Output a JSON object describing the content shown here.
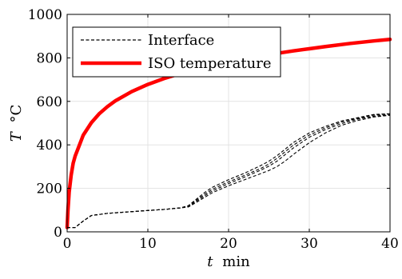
{
  "chart_data": {
    "type": "line",
    "title": "",
    "xlabel": {
      "var": "t",
      "unit": "min"
    },
    "ylabel": {
      "var": "T",
      "unit": "°C"
    },
    "xlim": [
      0,
      40
    ],
    "ylim": [
      0,
      1000
    ],
    "xticks": [
      0,
      10,
      20,
      30,
      40
    ],
    "yticks": [
      0,
      200,
      400,
      600,
      800,
      1000
    ],
    "grid": true,
    "legend_position": "top-left",
    "legend": [
      {
        "label": "Interface",
        "style": "dashed",
        "color": "#000000"
      },
      {
        "label": "ISO temperature",
        "style": "solid",
        "color": "#ff0000"
      }
    ],
    "series": [
      {
        "name": "ISO temperature",
        "color": "#ff0000",
        "style": "solid",
        "x": [
          0,
          0.1,
          0.25,
          0.5,
          0.75,
          1,
          1.5,
          2,
          3,
          4,
          5,
          6,
          8,
          10,
          12,
          15,
          18,
          20,
          22,
          25,
          28,
          30,
          32,
          35,
          38,
          40
        ],
        "y": [
          20,
          98,
          183,
          261,
          316,
          349,
          397,
          445,
          502,
          544,
          576,
          603,
          645,
          678,
          705,
          739,
          768,
          781,
          795,
          815,
          832,
          842,
          852,
          866,
          878,
          885
        ]
      },
      {
        "name": "Interface 1",
        "color": "#000000",
        "style": "dashed",
        "x": [
          0,
          1,
          2,
          3,
          5,
          8,
          10,
          12,
          14,
          15,
          16,
          17,
          18,
          20,
          22,
          24,
          25,
          26,
          27,
          28,
          30,
          32,
          34,
          36,
          38,
          40
        ],
        "y": [
          20,
          20,
          50,
          75,
          85,
          93,
          98,
          103,
          110,
          120,
          150,
          180,
          205,
          240,
          270,
          305,
          325,
          350,
          380,
          410,
          455,
          485,
          510,
          525,
          540,
          543
        ]
      },
      {
        "name": "Interface 2",
        "color": "#000000",
        "style": "dashed",
        "x": [
          0,
          1,
          2,
          3,
          5,
          8,
          10,
          12,
          14,
          15,
          16,
          17,
          18,
          20,
          22,
          24,
          25,
          26,
          27,
          28,
          30,
          32,
          34,
          36,
          38,
          40
        ],
        "y": [
          20,
          20,
          50,
          75,
          85,
          93,
          98,
          103,
          110,
          118,
          145,
          172,
          196,
          230,
          260,
          292,
          312,
          338,
          368,
          398,
          445,
          478,
          505,
          522,
          537,
          542
        ]
      },
      {
        "name": "Interface 3",
        "color": "#000000",
        "style": "dashed",
        "x": [
          0,
          1,
          2,
          3,
          5,
          8,
          10,
          12,
          14,
          15,
          16,
          17,
          18,
          20,
          22,
          24,
          25,
          26,
          27,
          28,
          30,
          32,
          34,
          36,
          38,
          40
        ],
        "y": [
          20,
          20,
          50,
          75,
          85,
          93,
          98,
          103,
          110,
          116,
          140,
          165,
          188,
          222,
          252,
          284,
          302,
          325,
          355,
          385,
          435,
          470,
          498,
          518,
          532,
          538
        ]
      },
      {
        "name": "Interface 4",
        "color": "#000000",
        "style": "dashed",
        "x": [
          0,
          1,
          2,
          3,
          5,
          8,
          10,
          12,
          14,
          15,
          16,
          17,
          18,
          20,
          22,
          24,
          25,
          26,
          27,
          28,
          30,
          32,
          34,
          36,
          38,
          40
        ],
        "y": [
          20,
          20,
          50,
          75,
          85,
          93,
          98,
          103,
          110,
          114,
          135,
          158,
          180,
          212,
          240,
          268,
          282,
          300,
          325,
          355,
          410,
          455,
          490,
          512,
          528,
          536
        ]
      }
    ]
  }
}
